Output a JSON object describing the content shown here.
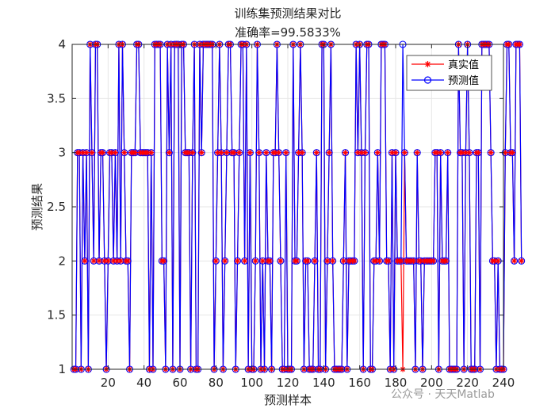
{
  "chart_data": {
    "type": "line",
    "title": "训练集预测结果对比",
    "subtitle": "准确率=99.5833%",
    "xlabel": "预测样本",
    "ylabel": "预测结果",
    "xlim": [
      0,
      240
    ],
    "ylim": [
      1,
      4
    ],
    "xticks": [
      20,
      40,
      60,
      80,
      100,
      120,
      140,
      160,
      180,
      200,
      220,
      240
    ],
    "yticks": [
      1,
      1.5,
      2,
      2.5,
      3,
      3.5,
      4
    ],
    "legend_position": "top-right",
    "grid": true,
    "series": [
      {
        "name": "真实值",
        "color": "#ff0000",
        "marker": "asterisk",
        "values": [
          1,
          1,
          3,
          3,
          1,
          3,
          2,
          3,
          1,
          4,
          3,
          2,
          4,
          4,
          2,
          3,
          3,
          2,
          1,
          2,
          3,
          3,
          2,
          3,
          2,
          4,
          2,
          4,
          3,
          2,
          2,
          1,
          3,
          3,
          3,
          4,
          4,
          3,
          3,
          3,
          3,
          3,
          1,
          3,
          1,
          4,
          4,
          4,
          4,
          2,
          2,
          1,
          4,
          3,
          4,
          1,
          4,
          4,
          4,
          1,
          4,
          4,
          3,
          3,
          3,
          1,
          3,
          4,
          1,
          1,
          4,
          3,
          4,
          4,
          4,
          4,
          4,
          4,
          1,
          2,
          3,
          4,
          3,
          1,
          2,
          3,
          4,
          4,
          3,
          3,
          1,
          2,
          3,
          4,
          4,
          2,
          4,
          1,
          3,
          1,
          1,
          2,
          4,
          3,
          1,
          2,
          1,
          3,
          2,
          2,
          1,
          3,
          3,
          4,
          3,
          2,
          1,
          1,
          3,
          1,
          1,
          1,
          4,
          2,
          2,
          3,
          4,
          3,
          1,
          2,
          2,
          1,
          1,
          1,
          2,
          3,
          1,
          1,
          4,
          4,
          1,
          2,
          3,
          4,
          2,
          1,
          1,
          1,
          1,
          1,
          2,
          3,
          1,
          2,
          2,
          2,
          2,
          4,
          3,
          4,
          3,
          1,
          3,
          4,
          4,
          1,
          1,
          2,
          2,
          3,
          2,
          4,
          4,
          4,
          2,
          2,
          1,
          3,
          1,
          3,
          2,
          2,
          2,
          1,
          3,
          2,
          2,
          2,
          2,
          2,
          1,
          3,
          2,
          2,
          1,
          2,
          2,
          2,
          2,
          2,
          2,
          3,
          3,
          1,
          3,
          2,
          2,
          2,
          3,
          1,
          1,
          1,
          1,
          1,
          4,
          3,
          3,
          1,
          3,
          4,
          3,
          1,
          1,
          1,
          3,
          3,
          1,
          4,
          4,
          4,
          4,
          4,
          3,
          2,
          2,
          1,
          2,
          1,
          1,
          1,
          3,
          4,
          4,
          3,
          3,
          2,
          4,
          4,
          4,
          2
        ]
      },
      {
        "name": "预测值",
        "color": "#0000ff",
        "marker": "circle",
        "values": [
          1,
          1,
          3,
          3,
          1,
          3,
          2,
          3,
          1,
          4,
          3,
          2,
          4,
          4,
          2,
          3,
          3,
          2,
          1,
          2,
          3,
          3,
          2,
          3,
          2,
          4,
          2,
          4,
          3,
          2,
          2,
          1,
          3,
          3,
          3,
          4,
          4,
          3,
          3,
          3,
          3,
          3,
          1,
          3,
          1,
          4,
          4,
          4,
          4,
          2,
          2,
          1,
          4,
          3,
          4,
          1,
          4,
          4,
          4,
          1,
          4,
          4,
          3,
          3,
          3,
          1,
          3,
          4,
          1,
          1,
          4,
          3,
          4,
          4,
          4,
          4,
          4,
          4,
          1,
          2,
          3,
          4,
          3,
          1,
          2,
          3,
          4,
          4,
          3,
          3,
          1,
          2,
          3,
          4,
          4,
          2,
          4,
          1,
          3,
          1,
          1,
          2,
          4,
          3,
          1,
          2,
          1,
          3,
          2,
          2,
          1,
          3,
          3,
          4,
          3,
          2,
          1,
          1,
          3,
          1,
          1,
          1,
          4,
          2,
          2,
          3,
          4,
          3,
          1,
          2,
          2,
          1,
          1,
          1,
          2,
          3,
          1,
          1,
          4,
          4,
          1,
          2,
          3,
          4,
          2,
          1,
          1,
          1,
          1,
          1,
          2,
          3,
          1,
          2,
          2,
          2,
          2,
          4,
          3,
          4,
          3,
          1,
          3,
          4,
          4,
          1,
          1,
          2,
          2,
          3,
          2,
          4,
          4,
          4,
          2,
          2,
          1,
          3,
          1,
          3,
          2,
          2,
          2,
          4,
          3,
          2,
          2,
          2,
          2,
          2,
          1,
          3,
          2,
          2,
          1,
          2,
          2,
          2,
          2,
          2,
          2,
          3,
          3,
          1,
          3,
          2,
          2,
          2,
          3,
          1,
          1,
          1,
          1,
          1,
          4,
          3,
          3,
          1,
          3,
          4,
          3,
          1,
          1,
          1,
          3,
          3,
          1,
          4,
          4,
          4,
          4,
          4,
          3,
          2,
          2,
          1,
          2,
          1,
          1,
          1,
          3,
          4,
          4,
          3,
          3,
          2,
          4,
          4,
          4,
          2
        ]
      }
    ]
  },
  "watermark": "公众号 · 天天Matlab"
}
